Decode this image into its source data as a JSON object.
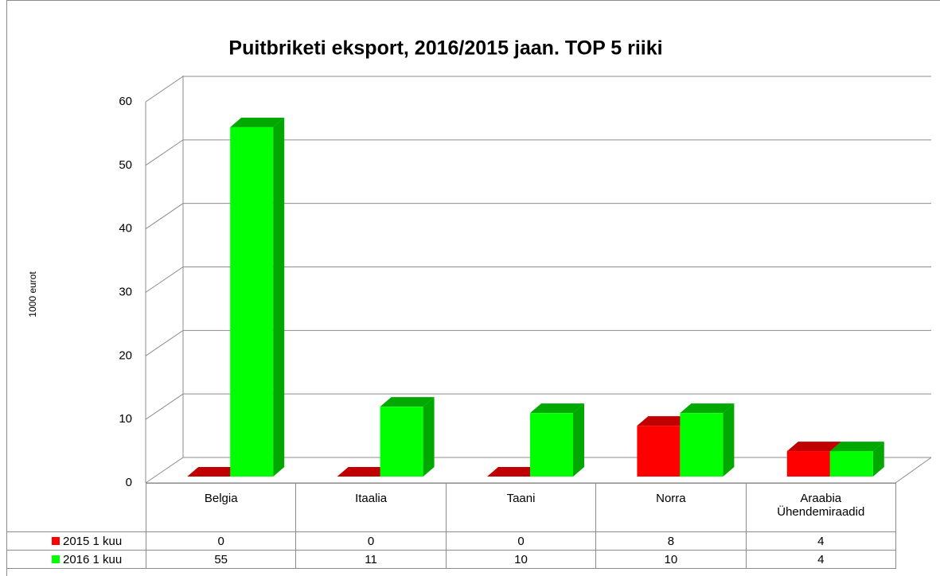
{
  "chart_data": {
    "type": "bar3d",
    "title": "Puitbriketi eksport, 2016/2015 jaan. TOP 5 riiki",
    "y_label": "1000 eurot",
    "categories": [
      "Belgia",
      "Itaalia",
      "Taani",
      "Norra",
      "Araabia Ühendemiraadid"
    ],
    "series": [
      {
        "name": "2015 1 kuu",
        "color": "#ff0000",
        "side_color": "#c00000",
        "values": [
          0,
          0,
          0,
          8,
          4
        ]
      },
      {
        "name": "2016 1 kuu",
        "color": "#00ff00",
        "side_color": "#00a800",
        "values": [
          55,
          11,
          10,
          10,
          4
        ]
      }
    ],
    "ylim": [
      0,
      60
    ],
    "yticks": [
      0,
      10,
      20,
      30,
      40,
      50,
      60
    ],
    "grid": true,
    "data_table": true
  }
}
